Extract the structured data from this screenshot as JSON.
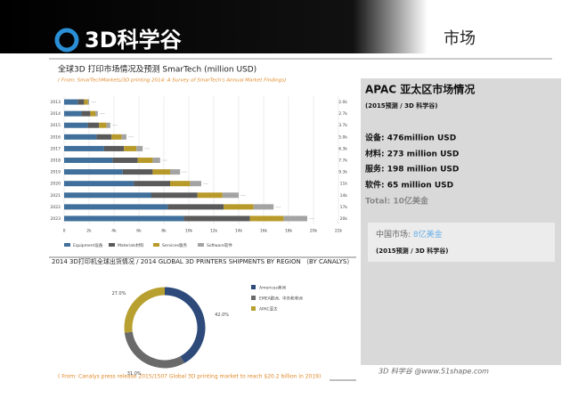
{
  "header": {
    "logo": "3D科学谷",
    "section": "市场"
  },
  "chart_data": [
    {
      "type": "hbar_stacked",
      "title": "全球3D 打印市场情况及预测 SmarTech (million USD)",
      "subtitle": "( From: SmarTechMarkets/3D printing 2014: A Survey of SmarTech's Annual Market Findings)",
      "categories": [
        "2013",
        "2014",
        "2015",
        "2016",
        "2017",
        "2018",
        "2019",
        "2020",
        "2021",
        "2022",
        "2023"
      ],
      "series": [
        {
          "name": "Equipment设备",
          "color": "#3f6f9a",
          "values": [
            1100,
            1400,
            1900,
            2600,
            3200,
            3900,
            4700,
            5600,
            7000,
            8300,
            9600
          ]
        },
        {
          "name": "Materials材料",
          "color": "#5a5a5a",
          "values": [
            500,
            700,
            900,
            1200,
            1600,
            2000,
            2400,
            2900,
            3700,
            4500,
            5300
          ]
        },
        {
          "name": "Services服务",
          "color": "#b89a2a",
          "values": [
            300,
            400,
            600,
            800,
            1000,
            1200,
            1400,
            1600,
            2000,
            2400,
            2700
          ]
        },
        {
          "name": "Software软件",
          "color": "#a3a3a3",
          "values": [
            100,
            200,
            300,
            400,
            500,
            600,
            800,
            900,
            1300,
            1600,
            1900
          ]
        }
      ],
      "total_labels": [
        "2.0k",
        "2.7k",
        "3.7k",
        "5.0k",
        "6.3k",
        "7.7k",
        "9.3k",
        "11k",
        "14k",
        "17k",
        "20k"
      ],
      "xlim": [
        0,
        22000
      ],
      "xticks": [
        0,
        {
          "value": 2000,
          "label": "2k"
        },
        {
          "value": 4000,
          "label": "4k"
        },
        {
          "value": 6000,
          "label": "6k"
        },
        {
          "value": 8000,
          "label": "8k"
        },
        {
          "value": 10000,
          "label": "10k"
        },
        {
          "value": 12000,
          "label": "12k"
        },
        {
          "value": 14000,
          "label": "14k"
        },
        {
          "value": 16000,
          "label": "16k"
        },
        {
          "value": 18000,
          "label": "18k"
        },
        {
          "value": 20000,
          "label": "20k"
        },
        {
          "value": 22000,
          "label": "22k"
        }
      ],
      "grid": true,
      "legend": "bottom"
    },
    {
      "type": "donut",
      "title": "2014 3D打印机全球出货情况 / 2014 GLOBAL 3D PRINTERS SHIPMENTS BY REGION （BY CANALYS）",
      "subtitle": "( From: Canalys press release 2015/1507 Global 3D printing market to reach $20.2 billion in 2019)",
      "categories": [
        "Americas美洲",
        "EMEA欧洲、中东和非洲",
        "APAC亚太"
      ],
      "values": [
        42,
        31,
        27
      ],
      "value_labels": [
        "42.0%",
        "31.0%",
        "27.0%"
      ],
      "colors": [
        "#2d4a7a",
        "#6a6a6a",
        "#b8a030"
      ],
      "legend": "right"
    }
  ],
  "panel": {
    "title": "APAC 亚太区市场情况",
    "note": "(2015预测 / 3D 科学谷)",
    "lines": [
      "设备: 476million USD",
      "材料: 273 million USD",
      "服务: 198 million USD",
      "软件: 65 million USD"
    ],
    "total": "Total: 10亿美金",
    "china_label": "中国市场: ",
    "china_value": "8亿美金",
    "china_note": "(2015预测 / 3D 科学谷)"
  },
  "footer": "3D 科学谷 @www.51shape.com"
}
